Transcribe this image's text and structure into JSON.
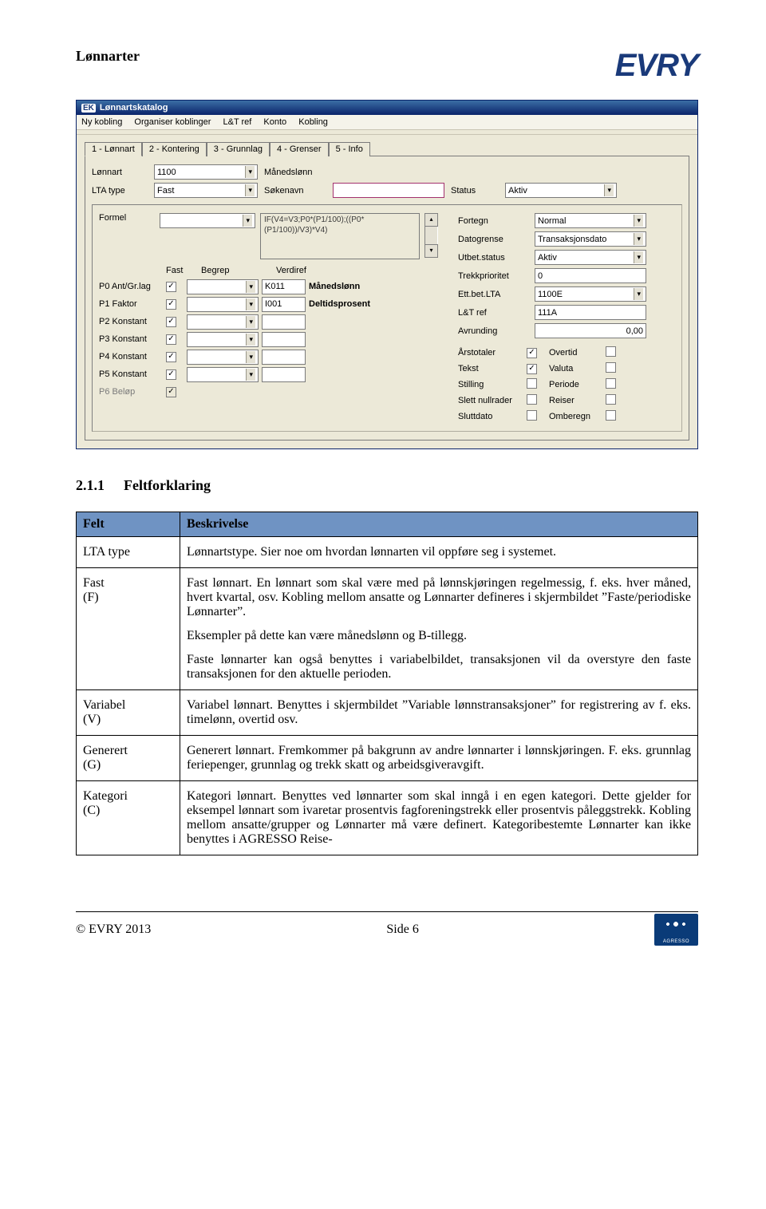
{
  "doc": {
    "header": "Lønnarter",
    "logo": "EVRY",
    "section_number": "2.1.1",
    "section_title": "Feltforklaring",
    "footer_left": "© EVRY 2013",
    "footer_right": "Side 6"
  },
  "window": {
    "title_prefix": "EK",
    "title": "Lønnartskatalog",
    "menu": [
      "Ny kobling",
      "Organiser koblinger",
      "L&T ref",
      "Konto",
      "Kobling"
    ],
    "tabs": [
      {
        "label": "1 - Lønnart",
        "active": true
      },
      {
        "label": "2 - Kontering",
        "active": false
      },
      {
        "label": "3 - Grunnlag",
        "active": false
      },
      {
        "label": "4 - Grenser",
        "active": false
      },
      {
        "label": "5 - Info",
        "active": false
      }
    ],
    "row1": {
      "lonnart_label": "Lønnart",
      "lonnart_value": "1100",
      "lonnart_desc": "Månedslønn",
      "lta_label": "LTA type",
      "lta_value": "Fast",
      "sokenavn_label": "Søkenavn",
      "sokenavn_value": "",
      "status_label": "Status",
      "status_value": "Aktiv"
    },
    "formel": {
      "label": "Formel",
      "value": "",
      "text": "IF(V4=V3;P0*(P1/100);((P0*(P1/100))/V3)*V4)"
    },
    "param_headers": {
      "fast": "Fast",
      "begrep": "Begrep",
      "verdiref": "Verdiref"
    },
    "params": [
      {
        "id": "P0 Ant/Gr.lag",
        "fast": true,
        "begrep": "",
        "ref": "K011",
        "desc": "Månedslønn",
        "disabled": false
      },
      {
        "id": "P1 Faktor",
        "fast": true,
        "begrep": "",
        "ref": "I001",
        "desc": "Deltidsprosent",
        "disabled": false
      },
      {
        "id": "P2 Konstant",
        "fast": true,
        "begrep": "",
        "ref": "",
        "desc": "",
        "disabled": false
      },
      {
        "id": "P3 Konstant",
        "fast": true,
        "begrep": "",
        "ref": "",
        "desc": "",
        "disabled": false
      },
      {
        "id": "P4 Konstant",
        "fast": true,
        "begrep": "",
        "ref": "",
        "desc": "",
        "disabled": false
      },
      {
        "id": "P5 Konstant",
        "fast": true,
        "begrep": "",
        "ref": "",
        "desc": "",
        "disabled": false
      },
      {
        "id": "P6 Beløp",
        "fast": true,
        "begrep": "",
        "ref": "",
        "desc": "",
        "disabled": true
      }
    ],
    "props": [
      {
        "label": "Fortegn",
        "value": "Normal",
        "dd": true
      },
      {
        "label": "Datogrense",
        "value": "Transaksjonsdato",
        "dd": true
      },
      {
        "label": "Utbet.status",
        "value": "Aktiv",
        "dd": true
      },
      {
        "label": "Trekkprioritet",
        "value": "0",
        "dd": false
      },
      {
        "label": "Ett.bet.LTA",
        "value": "1100E",
        "dd": true
      },
      {
        "label": "L&T ref",
        "value": "111A",
        "dd": false
      },
      {
        "label": "Avrunding",
        "value": "0,00",
        "dd": false,
        "align": "right"
      }
    ],
    "checks": [
      {
        "left": "Årstotaler",
        "left_checked": true,
        "right": "Overtid",
        "right_checked": false
      },
      {
        "left": "Tekst",
        "left_checked": true,
        "right": "Valuta",
        "right_checked": false
      },
      {
        "left": "Stilling",
        "left_checked": false,
        "right": "Periode",
        "right_checked": false
      },
      {
        "left": "Slett nullrader",
        "left_checked": false,
        "right": "Reiser",
        "right_checked": false
      },
      {
        "left": "Sluttdato",
        "left_checked": false,
        "right": "Omberegn",
        "right_checked": false
      }
    ]
  },
  "table": {
    "header_felt": "Felt",
    "header_beskrivelse": "Beskrivelse",
    "rows": [
      {
        "felt": "LTA type",
        "paras": [
          "Lønnartstype. Sier noe om hvordan lønnarten vil oppføre seg i systemet."
        ]
      },
      {
        "felt": "Fast (F)",
        "paras": [
          "Fast lønnart. En lønnart som skal være med på lønnskjøringen regelmessig, f. eks. hver måned, hvert kvartal, osv. Kobling mellom ansatte og Lønnarter defineres i skjermbildet ”Faste/periodiske Lønnarter”.",
          "Eksempler på dette kan være månedslønn og B-tillegg.",
          "Faste lønnarter kan også benyttes i variabelbildet, transaksjonen vil da overstyre den faste transaksjonen for den aktuelle perioden."
        ]
      },
      {
        "felt": "Variabel (V)",
        "paras": [
          "Variabel lønnart. Benyttes i skjermbildet ”Variable lønnstransaksjoner” for registrering av f. eks. timelønn, overtid osv."
        ]
      },
      {
        "felt": "Generert (G)",
        "paras": [
          "Generert lønnart. Fremkommer på bakgrunn av andre lønnarter i lønnskjøringen. F. eks. grunnlag feriepenger, grunnlag og trekk skatt og arbeidsgiveravgift."
        ]
      },
      {
        "felt": "Kategori (C)",
        "paras": [
          "Kategori lønnart. Benyttes ved lønnarter som skal inngå i en egen kategori. Dette gjelder for eksempel lønnart som ivaretar prosentvis fagforeningstrekk eller prosentvis påleggstrekk. Kobling mellom ansatte/grupper og Lønnarter må være definert. Kategoribestemte Lønnarter kan ikke benyttes i AGRESSO Reise-"
        ]
      }
    ]
  }
}
